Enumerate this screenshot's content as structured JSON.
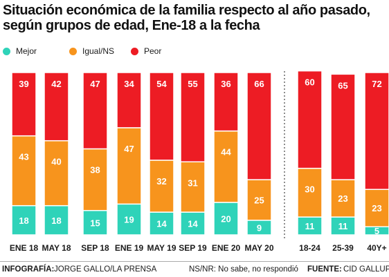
{
  "title": "Situación económica de la familia respecto al año pasado, según grupos de edad, Ene-18 a la fecha",
  "legend": [
    {
      "label": "Mejor",
      "color": "#2fd3b9"
    },
    {
      "label": "Igual/NS",
      "color": "#f7941d"
    },
    {
      "label": "Peor",
      "color": "#ed1c24"
    }
  ],
  "chart_data": {
    "type": "bar",
    "stacked": true,
    "normalized_to_100": true,
    "categories": [
      "ENE 18",
      "MAY 18",
      "SEP 18",
      "ENE 19",
      "MAY 19",
      "SEP 19",
      "ENE 20",
      "MAY 20",
      "18-24",
      "25-39",
      "40Y+"
    ],
    "separator_after_index": 7,
    "series": [
      {
        "name": "Mejor",
        "color": "#2fd3b9",
        "values": [
          18,
          18,
          15,
          19,
          14,
          14,
          20,
          9,
          11,
          11,
          5
        ]
      },
      {
        "name": "Igual/NS",
        "color": "#f7941d",
        "values": [
          43,
          40,
          38,
          47,
          32,
          31,
          44,
          25,
          30,
          23,
          23
        ]
      },
      {
        "name": "Peor",
        "color": "#ed1c24",
        "values": [
          39,
          42,
          47,
          34,
          54,
          55,
          36,
          66,
          60,
          65,
          72
        ]
      }
    ],
    "ylim": [
      0,
      100
    ],
    "grid": false
  },
  "footer": {
    "credit_label": "INFOGRAFÍA:",
    "credit_value": "JORGE GALLO/LA PRENSA",
    "note": "NS/NR: No sabe, no respondió",
    "source_label": "FUENTE:",
    "source_value": "CID GALLUP"
  }
}
